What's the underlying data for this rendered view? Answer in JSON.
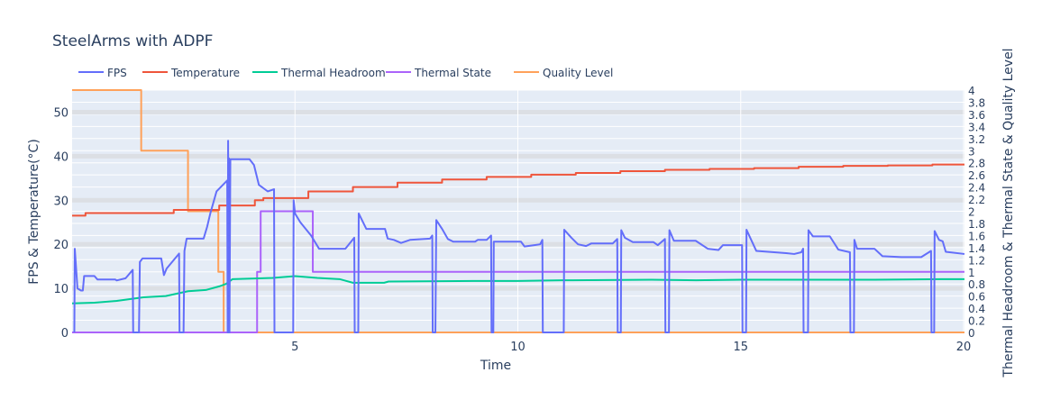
{
  "chart_data": {
    "type": "line",
    "title": "SteelArms with ADPF",
    "xlabel": "Time",
    "ylabel": "FPS & Temperature(°C)",
    "y2label": "Thermal Headroom & Thermal State & Quality Level",
    "xlim": [
      0,
      20.02
    ],
    "ylim": [
      0,
      55
    ],
    "y2lim": [
      0,
      4
    ],
    "x_ticks": [
      5,
      10,
      15,
      20
    ],
    "y_ticks": [
      0,
      10,
      20,
      30,
      40,
      50
    ],
    "y2_ticks": [
      0,
      0.2,
      0.4,
      0.6,
      0.8,
      1,
      1.2,
      1.4,
      1.6,
      1.8,
      2,
      2.2,
      2.4,
      2.6,
      2.8,
      3,
      3.2,
      3.4,
      3.6,
      3.8,
      4
    ],
    "grid": true,
    "legend_position": "top-left",
    "series": [
      {
        "name": "FPS",
        "axis": "y",
        "color": "#636efa",
        "x": [
          0.05,
          0.06,
          0.12,
          0.2,
          0.24,
          0.27,
          0.5,
          0.57,
          0.97,
          1.0,
          1.2,
          1.36,
          1.37,
          1.5,
          1.52,
          1.58,
          2.0,
          2.06,
          2.12,
          2.4,
          2.41,
          2.5,
          2.52,
          2.57,
          2.95,
          3.03,
          3.1,
          3.24,
          3.48,
          3.49,
          3.5,
          3.51,
          3.52,
          3.53,
          3.55,
          3.6,
          3.98,
          4.08,
          4.19,
          4.39,
          4.53,
          4.54,
          4.96,
          4.97,
          5.0,
          5.12,
          5.36,
          5.54,
          6.13,
          6.33,
          6.34,
          6.42,
          6.43,
          6.6,
          7.02,
          7.08,
          7.22,
          7.38,
          7.58,
          8.03,
          8.08,
          8.09,
          8.15,
          8.17,
          8.3,
          8.43,
          8.55,
          9.04,
          9.1,
          9.3,
          9.4,
          9.41,
          9.45,
          9.46,
          10.07,
          10.15,
          10.37,
          10.5,
          10.55,
          10.56,
          11.03,
          11.04,
          11.2,
          11.35,
          11.53,
          11.65,
          12.13,
          12.23,
          12.24,
          12.31,
          12.32,
          12.4,
          12.58,
          13.04,
          13.14,
          13.3,
          13.31,
          13.39,
          13.4,
          13.5,
          13.99,
          14.26,
          14.5,
          14.6,
          15.03,
          15.04,
          15.12,
          15.13,
          15.35,
          16.02,
          16.2,
          16.36,
          16.4,
          16.41,
          16.51,
          16.52,
          16.62,
          17.0,
          17.19,
          17.45,
          17.46,
          17.54,
          17.55,
          17.61,
          18.0,
          18.18,
          18.6,
          19.05,
          19.27,
          19.28,
          19.34,
          19.35,
          19.45,
          19.53,
          19.6,
          20.02
        ],
        "y": [
          0,
          19,
          10,
          9.5,
          9.5,
          12.8,
          12.8,
          12,
          12,
          11.8,
          12.3,
          14.2,
          0,
          0,
          16,
          16.8,
          16.8,
          13,
          14.5,
          17.9,
          0,
          0,
          18.5,
          21.3,
          21.3,
          24,
          27,
          32,
          34.5,
          0,
          43.5,
          0,
          39.5,
          0,
          39.3,
          39.3,
          39.3,
          38,
          33.5,
          32,
          32.5,
          0,
          0,
          30,
          27,
          25,
          22,
          19,
          19,
          21.5,
          0,
          0,
          27,
          23.5,
          23.5,
          21.3,
          21,
          20.3,
          21,
          21.3,
          22,
          0,
          0,
          25.5,
          23.5,
          21.2,
          20.6,
          20.6,
          21,
          21,
          22,
          0,
          0,
          20.6,
          20.6,
          19.5,
          19.8,
          20,
          21,
          0,
          0,
          23.3,
          21.5,
          20,
          19.6,
          20.2,
          20.2,
          21.2,
          0,
          0,
          23.2,
          21.5,
          20.5,
          20.5,
          19.8,
          21.2,
          0,
          0,
          23.2,
          20.8,
          20.8,
          19,
          18.7,
          19.8,
          19.8,
          0,
          0,
          23.3,
          18.5,
          18,
          17.8,
          18.2,
          19,
          0,
          0,
          23.2,
          21.8,
          21.8,
          18.8,
          18.2,
          0,
          0,
          21,
          19,
          19,
          17.3,
          17.1,
          17.1,
          18.5,
          0,
          0,
          23,
          21,
          20.7,
          18.3,
          17.8
        ]
      },
      {
        "name": "Temperature",
        "axis": "y",
        "color": "#ef553b",
        "step": true,
        "x": [
          0,
          0.3,
          2.28,
          3.3,
          4.1,
          4.29,
          5.3,
          6.3,
          7.3,
          8.3,
          9.3,
          10.3,
          11.3,
          12.3,
          13.3,
          14.3,
          15.3,
          16.3,
          17.3,
          18.3,
          19.3,
          20.02
        ],
        "y": [
          26.5,
          27.1,
          27.8,
          28.8,
          30.0,
          30.5,
          32.0,
          33.0,
          34.0,
          34.7,
          35.3,
          35.8,
          36.2,
          36.6,
          36.9,
          37.1,
          37.3,
          37.6,
          37.8,
          37.9,
          38.1,
          38.1
        ]
      },
      {
        "name": "Thermal Headroom",
        "axis": "y2",
        "color": "#00cc96",
        "x": [
          0,
          0.5,
          1.0,
          1.6,
          2.1,
          2.6,
          3.0,
          3.3,
          3.45,
          3.6,
          4.5,
          5.0,
          5.5,
          6.0,
          6.3,
          7.0,
          7.1,
          9.0,
          10.0,
          11.0,
          13.0,
          14.0,
          15.0,
          17.0,
          18.0,
          19.5,
          20.02
        ],
        "y": [
          0.48,
          0.49,
          0.52,
          0.58,
          0.6,
          0.68,
          0.7,
          0.76,
          0.8,
          0.88,
          0.9,
          0.93,
          0.9,
          0.88,
          0.82,
          0.82,
          0.84,
          0.85,
          0.85,
          0.86,
          0.87,
          0.86,
          0.87,
          0.87,
          0.87,
          0.88,
          0.88
        ]
      },
      {
        "name": "Thermal State",
        "axis": "y2",
        "color": "#ab63fa",
        "step": true,
        "x": [
          0,
          4.15,
          4.23,
          5.4,
          20.02
        ],
        "y": [
          0,
          1,
          2,
          1,
          1
        ]
      },
      {
        "name": "Quality Level",
        "axis": "y2",
        "color": "#ffa15a",
        "step": true,
        "x": [
          0,
          1.55,
          2.6,
          3.28,
          3.4,
          20.02
        ],
        "y": [
          4,
          3,
          2,
          1,
          0,
          0
        ]
      }
    ]
  }
}
